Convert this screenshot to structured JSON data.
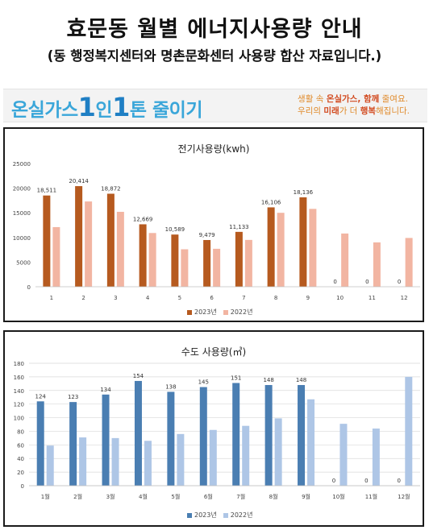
{
  "header": {
    "title": "효문동 월별 에너지사용량 안내",
    "subtitle": "(동 행정복지센터와 명촌문화센터 사용량 합산 자료입니다.)"
  },
  "banner": {
    "logo_prefix": "온실가스",
    "logo_one_a": "1",
    "logo_mid": "인",
    "logo_one_b": "1",
    "logo_suffix": "톤 줄이기",
    "slogan_line1_a": "생활 속 ",
    "slogan_line1_b": "온실가스, 함께",
    "slogan_line1_c": " 줄여요.",
    "slogan_line2_a": "우리의 ",
    "slogan_line2_b": "미래",
    "slogan_line2_c": "가 더 ",
    "slogan_line2_d": "행복",
    "slogan_line2_e": "해집니다."
  },
  "chart_data": [
    {
      "type": "bar",
      "title": "전기사용량(kwh)",
      "categories": [
        "1",
        "2",
        "3",
        "4",
        "5",
        "6",
        "7",
        "8",
        "9",
        "10",
        "11",
        "12"
      ],
      "series": [
        {
          "name": "2023년",
          "color": "#b65a1f",
          "values": [
            18511,
            20414,
            18872,
            12669,
            10589,
            9479,
            11133,
            16106,
            18136,
            0,
            0,
            0
          ]
        },
        {
          "name": "2022년",
          "color": "#f2b5a2",
          "values": [
            12100,
            17300,
            15200,
            10900,
            7600,
            7700,
            9500,
            15000,
            15800,
            10800,
            9000,
            9900
          ]
        }
      ],
      "data_labels": [
        "18,511",
        "20,414",
        "18,872",
        "12,669",
        "10,589",
        "9,479",
        "11,133",
        "16,106",
        "18,136",
        "0",
        "0",
        "0"
      ],
      "y_ticks": [
        "0",
        "5000",
        "10000",
        "15000",
        "20000",
        "25000"
      ],
      "ylim": [
        0,
        25000
      ],
      "legend": "bottom",
      "grid": false
    },
    {
      "type": "bar",
      "title": "수도 사용량(㎥)",
      "categories": [
        "1월",
        "2월",
        "3월",
        "4월",
        "5월",
        "6월",
        "7월",
        "8월",
        "9월",
        "10월",
        "11월",
        "12월"
      ],
      "series": [
        {
          "name": "2023년",
          "color": "#4a7eb2",
          "values": [
            124,
            123,
            134,
            154,
            138,
            145,
            151,
            148,
            148,
            0,
            0,
            0
          ]
        },
        {
          "name": "2022년",
          "color": "#aec6e6",
          "values": [
            59,
            71,
            70,
            66,
            76,
            82,
            88,
            99,
            127,
            91,
            84,
            160
          ]
        }
      ],
      "data_labels": [
        "124",
        "123",
        "134",
        "154",
        "138",
        "145",
        "151",
        "148",
        "148",
        "0",
        "0",
        "0"
      ],
      "y_ticks": [
        "0",
        "20",
        "40",
        "60",
        "80",
        "100",
        "120",
        "140",
        "160",
        "180"
      ],
      "ylim": [
        0,
        180
      ],
      "legend": "bottom",
      "grid": true
    }
  ]
}
